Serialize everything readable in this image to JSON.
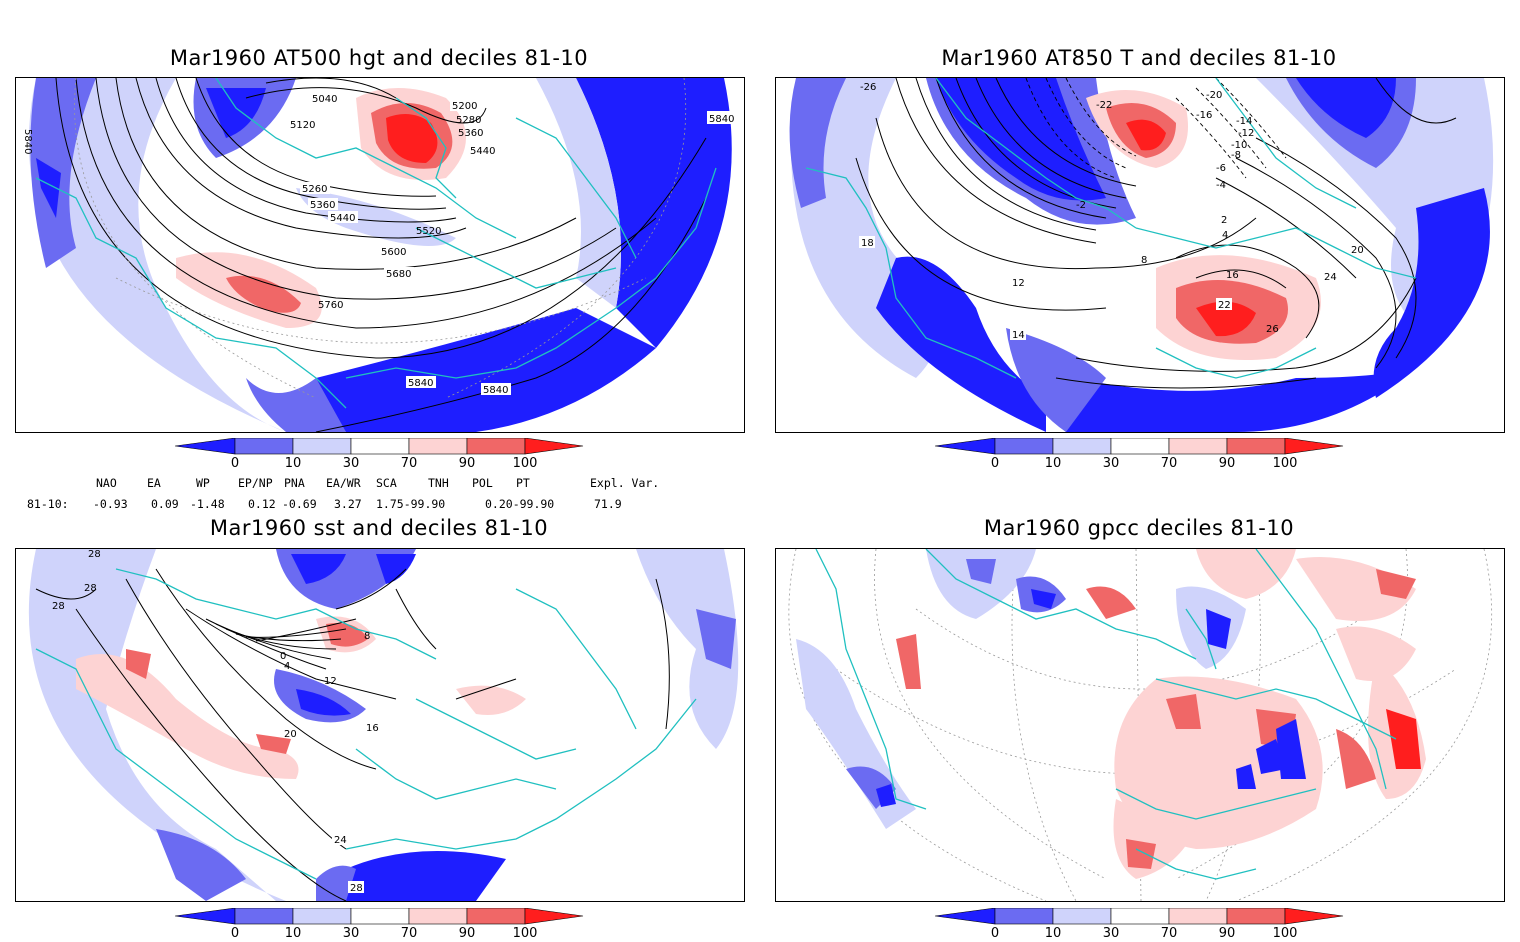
{
  "panels": [
    {
      "title": "Mar1960 AT500 hgt and deciles 81-10",
      "contour_labels": [
        "5840",
        "5040",
        "5120",
        "5200",
        "5280",
        "5360",
        "5440",
        "5260",
        "5360",
        "5440",
        "5520",
        "5600",
        "5680",
        "5760",
        "5840",
        "5840",
        "5840"
      ]
    },
    {
      "title": "Mar1960 AT850 T and deciles 81-10",
      "contour_labels": [
        "-26",
        "-22",
        "-20",
        "-16",
        "-14",
        "-12",
        "-10",
        "-8",
        "-6",
        "-4",
        "-2",
        "2",
        "4",
        "8",
        "12",
        "14",
        "16",
        "18",
        "20",
        "22",
        "24",
        "26"
      ]
    },
    {
      "title": "Mar1960 sst and deciles 81-10",
      "contour_labels": [
        "28",
        "28",
        "28",
        "0",
        "4",
        "8",
        "12",
        "16",
        "20",
        "24",
        "28"
      ]
    },
    {
      "title": "Mar1960 gpcc deciles 81-10",
      "contour_labels": []
    }
  ],
  "colorbar": {
    "ticks": [
      "0",
      "10",
      "30",
      "70",
      "90",
      "100"
    ],
    "colors": [
      "#1e1eff",
      "#6b6bf2",
      "#cfd3fb",
      "#ffffff",
      "#fdd3d3",
      "#f06767",
      "#ff1e1e"
    ]
  },
  "indices": {
    "headers": [
      "NAO",
      "EA",
      "WP",
      "EP/NP",
      "PNA",
      "EA/WR",
      "SCA",
      "TNH",
      "POL",
      "PT",
      "Expl. Var."
    ],
    "row_label": "81-10:",
    "values": [
      "-0.93",
      "0.09",
      "-1.48",
      "0.12",
      "-0.69",
      "3.27",
      "1.75-99.90",
      "",
      "0.20-99.90",
      "",
      "71.9"
    ]
  }
}
